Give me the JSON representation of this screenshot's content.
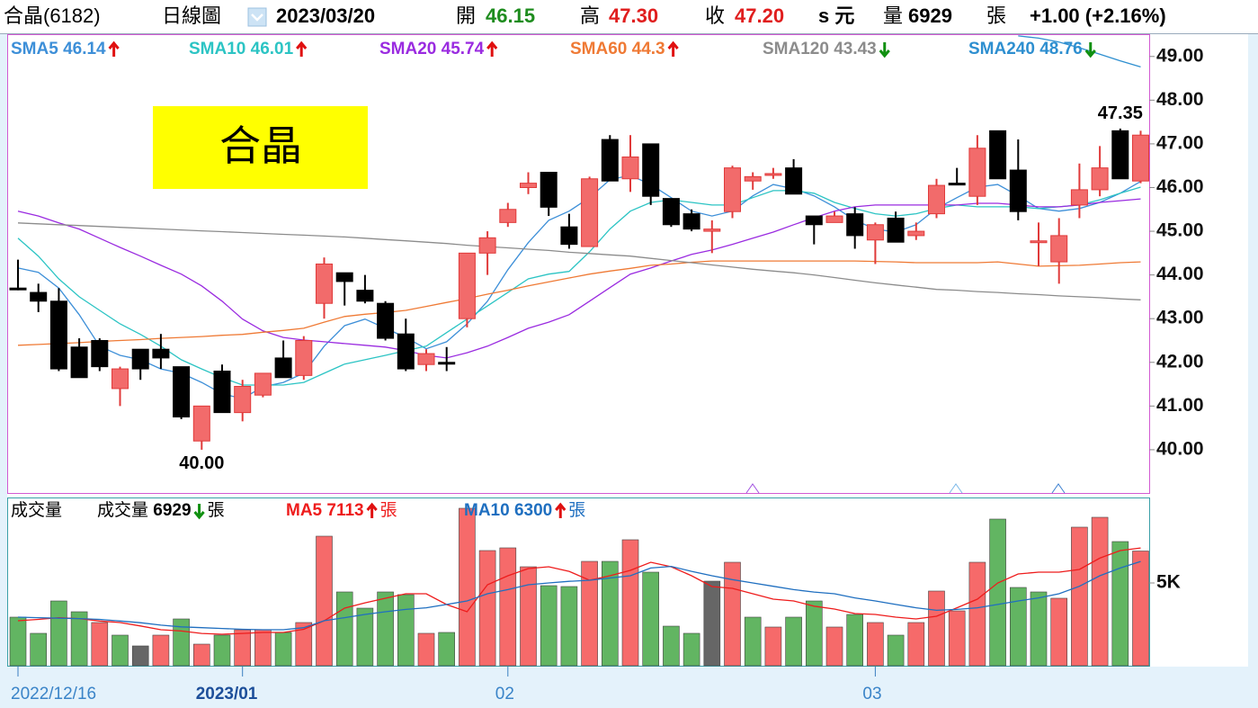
{
  "header": {
    "stock": "合晶(6182)",
    "view": "日線圖",
    "date": "2023/03/20",
    "open_label": "開",
    "open": "46.15",
    "high_label": "高",
    "high": "47.30",
    "close_label": "收",
    "close": "47.20",
    "currency": "s 元",
    "volume_label": "量",
    "volume": "6929",
    "volume_unit": "張",
    "change": "+1.00 (+2.16%)"
  },
  "chart_data": [
    {
      "type": "candlestick",
      "title": "合晶",
      "categories": [
        "2022/12/16",
        null,
        null,
        null,
        null,
        null,
        null,
        null,
        null,
        null,
        null,
        "2023/01",
        null,
        null,
        null,
        null,
        null,
        null,
        null,
        null,
        null,
        null,
        null,
        null,
        "02",
        null,
        null,
        null,
        null,
        null,
        null,
        null,
        null,
        null,
        null,
        null,
        null,
        null,
        null,
        null,
        null,
        null,
        "03",
        null,
        null,
        null,
        null,
        null,
        null,
        null,
        null,
        null,
        null,
        null,
        null,
        null
      ],
      "open": [
        43.7,
        43.6,
        43.4,
        42.35,
        42.5,
        41.4,
        42.3,
        42.3,
        41.9,
        40.2,
        41.8,
        40.85,
        41.25,
        42.1,
        41.7,
        43.35,
        44.05,
        43.65,
        43.35,
        42.65,
        41.95,
        42.0,
        43.0,
        44.5,
        45.2,
        46.0,
        46.35,
        45.1,
        44.65,
        47.1,
        46.2,
        47.0,
        45.75,
        45.4,
        45.0,
        45.45,
        46.15,
        46.3,
        46.45,
        45.35,
        45.2,
        45.4,
        44.8,
        45.3,
        44.9,
        45.4,
        46.1,
        45.8,
        47.3,
        46.4,
        44.75,
        44.3,
        45.6,
        45.95,
        47.3,
        46.15
      ],
      "high": [
        44.35,
        43.8,
        43.7,
        42.55,
        42.55,
        41.9,
        42.3,
        42.65,
        41.9,
        41.0,
        41.95,
        41.6,
        41.75,
        42.5,
        42.6,
        44.4,
        44.05,
        44.0,
        43.4,
        43.0,
        42.3,
        42.35,
        44.5,
        45.0,
        45.65,
        46.35,
        46.35,
        45.4,
        46.25,
        47.2,
        47.2,
        47.0,
        45.75,
        45.5,
        45.25,
        46.5,
        46.35,
        46.45,
        46.65,
        45.35,
        45.45,
        45.55,
        45.2,
        45.45,
        45.2,
        46.2,
        46.45,
        47.2,
        47.3,
        47.1,
        45.2,
        45.3,
        46.55,
        46.95,
        47.35,
        47.3
      ],
      "low": [
        43.65,
        43.15,
        41.8,
        41.65,
        41.8,
        41.0,
        41.6,
        41.85,
        40.7,
        40.0,
        40.85,
        40.65,
        41.2,
        41.65,
        41.6,
        43.0,
        43.3,
        43.35,
        42.5,
        41.8,
        41.8,
        41.8,
        42.8,
        44.0,
        45.1,
        45.85,
        45.35,
        44.6,
        44.65,
        46.15,
        45.9,
        45.6,
        45.1,
        45.0,
        44.5,
        45.3,
        45.95,
        46.2,
        45.85,
        44.7,
        45.2,
        44.6,
        44.25,
        44.75,
        44.8,
        45.3,
        46.1,
        45.6,
        46.2,
        45.25,
        44.2,
        43.8,
        45.3,
        45.8,
        46.2,
        46.1
      ],
      "close": [
        43.7,
        43.4,
        41.85,
        41.65,
        41.9,
        41.85,
        41.85,
        42.1,
        40.75,
        41.0,
        40.85,
        41.45,
        41.75,
        41.65,
        42.5,
        44.25,
        43.85,
        43.4,
        42.55,
        41.85,
        42.2,
        42.0,
        44.5,
        44.85,
        45.5,
        46.1,
        45.55,
        44.7,
        46.2,
        46.15,
        46.7,
        45.8,
        45.15,
        45.05,
        45.05,
        46.45,
        46.25,
        46.32,
        45.85,
        45.15,
        45.35,
        44.9,
        45.15,
        44.75,
        45.0,
        46.05,
        46.1,
        46.9,
        46.2,
        45.45,
        44.78,
        44.9,
        45.95,
        46.45,
        46.2,
        47.2
      ],
      "up_color": "#f26b6b",
      "down_color": "#000000",
      "ylim": [
        39.01,
        49.51
      ],
      "yticks": [
        {
          "value": 40,
          "label": "40.00"
        },
        {
          "value": 41,
          "label": "41.00"
        },
        {
          "value": 42,
          "label": "42.00"
        },
        {
          "value": 43,
          "label": "43.00"
        },
        {
          "value": 44,
          "label": "44.00"
        },
        {
          "value": 45,
          "label": "45.00"
        },
        {
          "value": 46,
          "label": "46.00"
        },
        {
          "value": 47,
          "label": "47.00"
        },
        {
          "value": 48,
          "label": "48.00"
        },
        {
          "value": 49,
          "label": "49.00"
        }
      ],
      "annotations": [
        {
          "value": 47.35,
          "label": "47.35"
        },
        {
          "value": 40,
          "label": "40.00"
        }
      ],
      "series": [
        {
          "name": "SMA5",
          "color": "#3d8fd8",
          "values": [
            44.16,
            44.06,
            43.7,
            43.09,
            42.37,
            42.16,
            42.06,
            41.85,
            41.75,
            41.54,
            41.28,
            41.17,
            41.44,
            41.54,
            41.75,
            42.37,
            42.84,
            42.99,
            42.78,
            42.57,
            42.31,
            42.47,
            42.88,
            43.4,
            44.12,
            44.74,
            45.25,
            45.46,
            45.77,
            46.18,
            46.28,
            46.07,
            45.77,
            45.46,
            45.35,
            45.46,
            45.81,
            46.07,
            45.97,
            45.81,
            45.56,
            45.25,
            45.05,
            44.98,
            45.15,
            45.52,
            45.77,
            46.01,
            46.07,
            45.81,
            45.52,
            45.46,
            45.52,
            45.66,
            45.87,
            46.14
          ]
        },
        {
          "name": "SMA10",
          "color": "#2cc4c4",
          "values": [
            44.84,
            44.43,
            43.91,
            43.5,
            43.19,
            42.88,
            42.64,
            42.37,
            42.06,
            41.85,
            41.65,
            41.48,
            41.48,
            41.48,
            41.54,
            41.75,
            41.96,
            42.06,
            42.16,
            42.27,
            42.37,
            42.68,
            42.99,
            43.29,
            43.6,
            43.91,
            44.02,
            44.08,
            44.53,
            45.05,
            45.46,
            45.66,
            45.72,
            45.66,
            45.6,
            45.6,
            45.77,
            45.93,
            45.93,
            45.87,
            45.66,
            45.52,
            45.4,
            45.35,
            45.4,
            45.52,
            45.6,
            45.56,
            45.56,
            45.56,
            45.52,
            45.56,
            45.6,
            45.72,
            45.87,
            46.01
          ]
        },
        {
          "name": "SMA20",
          "color": "#9a2be0",
          "values": [
            45.46,
            45.35,
            45.19,
            45.05,
            44.84,
            44.63,
            44.43,
            44.22,
            44.02,
            43.75,
            43.4,
            42.99,
            42.72,
            42.57,
            42.51,
            42.47,
            42.43,
            42.39,
            42.35,
            42.27,
            42.16,
            42.1,
            42.22,
            42.37,
            42.57,
            42.78,
            42.92,
            43.09,
            43.4,
            43.71,
            44.02,
            44.16,
            44.32,
            44.47,
            44.57,
            44.7,
            44.84,
            44.98,
            45.15,
            45.31,
            45.46,
            45.56,
            45.6,
            45.6,
            45.6,
            45.6,
            45.6,
            45.64,
            45.64,
            45.6,
            45.56,
            45.56,
            45.6,
            45.66,
            45.7,
            45.74
          ]
        },
        {
          "name": "SMA60",
          "color": "#ef7a35",
          "values": [
            42.39,
            42.41,
            42.43,
            42.45,
            42.48,
            42.5,
            42.52,
            42.55,
            42.57,
            42.59,
            42.62,
            42.64,
            42.69,
            42.73,
            42.78,
            42.92,
            43.05,
            43.1,
            43.14,
            43.19,
            43.28,
            43.37,
            43.46,
            43.56,
            43.65,
            43.75,
            43.84,
            43.93,
            44.02,
            44.09,
            44.15,
            44.22,
            44.25,
            44.29,
            44.32,
            44.32,
            44.32,
            44.32,
            44.32,
            44.32,
            44.32,
            44.32,
            44.31,
            44.3,
            44.28,
            44.28,
            44.28,
            44.28,
            44.3,
            44.25,
            44.2,
            44.21,
            44.22,
            44.25,
            44.28,
            44.3
          ]
        },
        {
          "name": "SMA120",
          "color": "#8c8c8c",
          "values": [
            45.19,
            45.17,
            45.15,
            45.13,
            45.11,
            45.09,
            45.07,
            45.05,
            45.03,
            45.01,
            44.99,
            44.97,
            44.95,
            44.93,
            44.91,
            44.89,
            44.87,
            44.84,
            44.81,
            44.78,
            44.75,
            44.72,
            44.68,
            44.65,
            44.62,
            44.59,
            44.56,
            44.52,
            44.49,
            44.46,
            44.43,
            44.38,
            44.33,
            44.28,
            44.23,
            44.18,
            44.13,
            44.09,
            44.05,
            44.0,
            43.94,
            43.88,
            43.82,
            43.77,
            43.72,
            43.67,
            43.65,
            43.62,
            43.6,
            43.57,
            43.55,
            43.52,
            43.5,
            43.48,
            43.45,
            43.43
          ]
        },
        {
          "name": "SMA240",
          "color": "#2e8fd0",
          "values": [
            null,
            null,
            null,
            null,
            null,
            null,
            null,
            null,
            null,
            null,
            null,
            null,
            null,
            null,
            null,
            null,
            null,
            null,
            null,
            null,
            null,
            null,
            null,
            null,
            null,
            null,
            null,
            null,
            null,
            null,
            null,
            null,
            null,
            null,
            null,
            null,
            null,
            null,
            null,
            null,
            null,
            null,
            null,
            null,
            null,
            null,
            null,
            null,
            null,
            49.47,
            49.42,
            49.33,
            49.2,
            49.05,
            48.9,
            48.76
          ]
        }
      ]
    },
    {
      "type": "bar",
      "title": "成交量",
      "legend_label": "成交量",
      "unit": "張",
      "values": [
        2935,
        1957,
        3913,
        3261,
        2609,
        1848,
        1196,
        1848,
        2826,
        1304,
        1848,
        2174,
        2174,
        2011,
        2609,
        7826,
        4457,
        3478,
        4457,
        4293,
        1957,
        2011,
        9511,
        6957,
        7120,
        5978,
        4837,
        4783,
        6304,
        6304,
        7609,
        5652,
        2391,
        1957,
        5109,
        6250,
        2935,
        2337,
        2935,
        3913,
        2337,
        3098,
        2609,
        1848,
        2609,
        4511,
        3315,
        6250,
        8859,
        4728,
        4457,
        4076,
        8370,
        8967,
        7500,
        6929
      ],
      "up_color": "#f66a6a",
      "down_color": "#62b562",
      "flat_color": "#666666",
      "ylim": [
        0,
        10163
      ],
      "yticks": [
        {
          "value": 5000,
          "label": "5K"
        }
      ],
      "series": [
        {
          "name": "MA5",
          "color": "#ee1c1c",
          "values": [
            2717,
            2800,
            2900,
            2850,
            2700,
            2609,
            2400,
            2174,
            2100,
            1950,
            1902,
            1950,
            2011,
            2011,
            2200,
            2717,
            3478,
            3800,
            4076,
            4348,
            4348,
            3696,
            3261,
            4891,
            5435,
            5870,
            5978,
            5700,
            5163,
            5435,
            5761,
            6250,
            5978,
            5435,
            4783,
            4674,
            4350,
            4022,
            3913,
            3600,
            3424,
            3152,
            3098,
            2935,
            2826,
            2989,
            3500,
            4022,
            5000,
            5543,
            5652,
            5652,
            5815,
            6500,
            6957,
            7113
          ]
        },
        {
          "name": "MA10",
          "color": "#1f6fc0",
          "values": [
            2935,
            2900,
            2870,
            2850,
            2800,
            2700,
            2600,
            2450,
            2350,
            2300,
            2250,
            2200,
            2174,
            2174,
            2300,
            2717,
            2900,
            3100,
            3261,
            3400,
            3500,
            3700,
            3913,
            4348,
            4600,
            4891,
            5000,
            5100,
            5163,
            5300,
            5435,
            5900,
            6000,
            5700,
            5435,
            5200,
            5000,
            4800,
            4600,
            4450,
            4348,
            4100,
            3913,
            3700,
            3500,
            3350,
            3400,
            3500,
            3700,
            3913,
            4100,
            4348,
            4800,
            5435,
            5900,
            6300
          ]
        }
      ]
    }
  ]
}
